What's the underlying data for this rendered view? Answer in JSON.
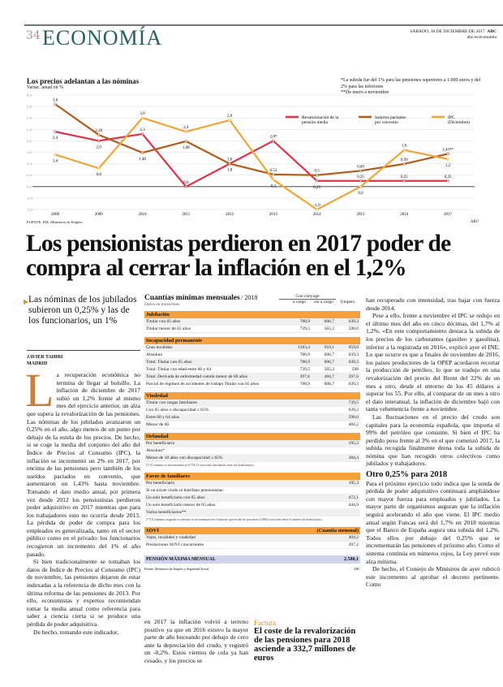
{
  "header": {
    "page_number": "34",
    "section": "ECONOMÍA",
    "date": "SÁBADO, 30 DE DICIEMBRE DE 2017",
    "brand": "ABC",
    "url": "abc.es/economia"
  },
  "chart_data": {
    "type": "line",
    "title": "Los precios adelantan a las nóminas",
    "subtitle": "Variac. anual en %",
    "categories": [
      "2008",
      "2009",
      "2010",
      "2011",
      "2012",
      "2013",
      "2014",
      "2015",
      "2016",
      "2017"
    ],
    "ylim": [
      -1.0,
      4.0
    ],
    "yticks": [
      "4,0",
      "3,5",
      "3,0",
      "2,5",
      "2,0",
      "1,5",
      "1,0",
      "0,5",
      "0,0",
      "-0,5",
      "-1,0"
    ],
    "legend_position": "top-right",
    "series": [
      {
        "name": "Revalorización de la pensión media",
        "color": "#e0344a",
        "values": [
          2.4,
          2.0,
          2.3,
          0.0,
          1.0,
          2.0,
          0.25,
          0.25,
          0.25,
          0.25
        ],
        "labels": [
          "2,4",
          "2,0",
          "2,3",
          "0,0",
          "1,0",
          "2,0*",
          "0,25",
          "0,25",
          "0,25",
          "0,25"
        ]
      },
      {
        "name": "Salarios pactados por convenio",
        "color": "#b35b1a",
        "values": [
          3.6,
          2.26,
          1.48,
          1.98,
          1.0,
          0.53,
          0.5,
          0.69,
          0.99,
          1.43
        ],
        "labels": [
          "3,6",
          "2,26",
          "1,48",
          "1,98",
          "1,0",
          "0,53",
          "0,5",
          "0,69",
          "0,99",
          "1,43**"
        ]
      },
      {
        "name": "IPC (Diciembre)",
        "color": "#f2a535",
        "values": [
          1.4,
          0.8,
          3.0,
          2.4,
          2.9,
          0.3,
          -1.0,
          0.0,
          1.6,
          1.2
        ],
        "labels": [
          "1,4",
          "0,8",
          "3,0",
          "2,4",
          "2,9",
          "0,3",
          "-1,0",
          "0,0",
          "1,6",
          "1,2"
        ]
      }
    ],
    "notes": [
      "*La subida fue del 1% para las pensiones superiores a 1.000 euros y del 2% para las inferiores",
      "**De enero a noviembre"
    ],
    "source": "FUENTE: INE, Ministerio de Empleo",
    "credit": "ABC"
  },
  "article": {
    "headline": "Los pensionistas perdieron en 2017 poder de compra al cerrar la inflación en el 1,2%",
    "lead": "Las nóminas de los jubilados subieron un 0,25% y las de los funcionarios, un 1%",
    "author": "JAVIER TAHIRI",
    "location": "MADRID",
    "drop": "L",
    "p1": "a recuperación económica no termina de llegar al bolsillo. La inflación de diciembre de 2017 subió un 1,2% frente al mismo mes del ejercicio anterior, un alza que supera la revalorización de las pensiones. Las nóminas de los jubilados avanzaron un 0,25% en el año, algo menos de un punto por debajo de la estela de los precios. De hecho, si se coge la media del conjunto del año del Índice de Precios al Consumo (IPC), la inflación se incrementó un 2% en 2017, por encima de las pensiones pero también de los sueldos pactados en convenio, que aumentaron un 1,43% hasta noviembre. Tomando el dato medio anual, por primera vez desde 2012 los pensionistas perdieron poder adquisitivo en 2017 mientras que para los trabajadores esto no ocurría desde 2013. La pérdida de poder de compra para los empleados es generalizada, tanto en el sector público como en el privado: los funcionarios recogieron un incremento del 1% el año pasado.",
    "p2": "Si bien tradicionalmente se tomaban los datos de Índice de Precios al Consumo (IPC) de noviembre, las pensiones dejaron de estar indexadas a la referencia de dicho mes con la última reforma de las pensiones de 2013. Por ello, economistas y expertos recomiendan tomar la media anual como referencia para saber a ciencia cierta si se produce una pérdida de poder adquisitiva.",
    "p3": "De hecho, tomando este indicador,",
    "p4": "en 2017 la inflación volvió a terreno positivo ya que en 2016 estuvo la mayor parte de año buceando por debajo de cero ante la depreciación del crudo, y registró un -0,2%. Estos vientos de cola ya han cesado, y los precios se",
    "p5": "han recuperado con intensidad, tras bajar con fuerza desde 2014.",
    "p6": "Pese a ello, frente a noviembre el IPC se redujo en el último mes del año en cinco décimas, del 1,7% al 1,2%. «En este comportamiento destaca la subida de los precios de los carburantes (gasóleo y gasolina), inferior a la registrada en 2016», explicó ayer el INE. Lo que ocurre es que a finales de noviembre de 2016, los países productores de la OPEP acordaron recortar la producción de petróleo, lo que se tradujo en una revalorización del precio del Brent del 22% de un mes a otro, desde el entorno de los 45 dólares a superar los 55. Por ello, al comparar de un mes a otro el dato interanual, la inflación de diciembre bajó con tanta vehemencia frente a noviembre.",
    "p7": "Las fluctuaciones en el precio del crudo son capitales para la economía española, que importa el 99% del petróleo que consume. Si bien el IPC ha perdido peso frente al 3% en el que comenzó 2017, la subida recogida finalmente drena toda la subida de nómina que han recogido otros colectivos como jubilados y trabajadores.",
    "subhead": "Otro 0,25% para 2018",
    "p8": "Para el próximo ejercicio todo indica que la senda de pérdida de poder adquisitivo continuará ampliándose con mayor fuerza para empleados y jubilados. La mayor parte de organismos auguran que la inflación seguirá acelerando el año que viene. El IPC medio anual según Funcas será del 1,7% en 2018 mientras que el Banco de España augura una subida del 1,2%. Todos ellos por debajo del 0,25% que se incrementarán las pensiones el próximo año. Como el sistema continúa en números rojos, la Ley prevé este alza mínima.",
    "p9": "De hecho, el Consejo de Ministros de ayer rubricó este incremento al aprobar el decreto pertinente. Como"
  },
  "factura": {
    "kicker": "Factura",
    "headline": "El coste de la revalorización de las pensiones para 2018 asciende a 332,7 millones de euros"
  },
  "table": {
    "title": "Cuantías mínimas mensuales",
    "year": "/ 2018",
    "subtitle": "Datos en euros/mes",
    "group_header": "Con cónyuge",
    "columns": [
      "a cargo",
      "sin a cargo",
      "Unipers."
    ],
    "sections": [
      {
        "name": "Jubilación",
        "rows": [
          [
            "Titular con 65 años",
            "788,9",
            "606,7",
            "639,3"
          ],
          [
            "Titular menor de 65 años",
            "739,5",
            "565,3",
            "598,0"
          ]
        ]
      },
      {
        "name": "Incapacidad permanente",
        "rows": [
          [
            "Gran invalidez",
            "1183,4",
            "910,1",
            "959,0"
          ],
          [
            "Absoluta",
            "788,9",
            "606,7",
            "639,3"
          ],
          [
            "Total: Titular con 65 años",
            "788,9",
            "606,7",
            "639,3"
          ],
          [
            "Total: Titular con edad entre 60 y 64",
            "739,5",
            "565,3",
            "598"
          ],
          [
            "Total: Derivada de enfermedad común menor de 60 años",
            "397,6",
            "404,7",
            "397,6"
          ],
          [
            "Parcial de régimen de accidentes de trabajo Titular con 65 años",
            "788,9",
            "606,7",
            "639,3"
          ]
        ]
      },
      {
        "name": "Viudedad",
        "rows": [
          [
            "Titular con cargas familiares",
            "",
            "",
            "739,5"
          ],
          [
            "Con 65 años o discapacidad ≥ 65%",
            "",
            "",
            "639,3"
          ],
          [
            "Entre 60 y 64 años",
            "",
            "",
            "598,0"
          ],
          [
            "Menor de 60",
            "",
            "",
            "484,2"
          ]
        ]
      },
      {
        "name": "Orfandad",
        "rows": [
          [
            "Por beneficiario",
            "",
            "",
            "195,3"
          ],
          [
            "Absoluta*",
            "",
            "",
            ""
          ],
          [
            "Menor de 18 años con discapacidad ≥ 65%",
            "",
            "",
            "384,4"
          ]
        ],
        "note": "(*) El mínimo se incrementará en 6.778,15 euros/año distribuido entre los beneficiarios"
      },
      {
        "name": "Favor de familiares",
        "rows": [
          [
            "Por beneficiario",
            "",
            "",
            "195,3"
          ],
          [
            "Si no existe viudo ni huérfano pensionistas:",
            "",
            "",
            ""
          ],
          [
            "Un solo beneficiario con 65 años",
            "",
            "",
            "472,1"
          ],
          [
            "Un solo beneficiario menor de 65 años",
            "",
            "",
            "444,9"
          ],
          [
            "Varios beneficiarios**",
            "",
            "",
            ""
          ]
        ],
        "note": "(**) El mínimo asignado a cada uno se incrementará en el importe que resulte de prorratear 4.098,6 euros/año entre el número de beneficiarios"
      },
      {
        "name": "SOVI",
        "extra": "(Cuantía mensual)",
        "rows": [
          [
            "Vejez, invalidez y viudedad",
            "",
            "",
            "409,2"
          ],
          [
            "Prestaciones SOVI concurrentes",
            "",
            "",
            "397,2"
          ]
        ]
      }
    ],
    "max_label": "PENSIÓN MÁXIMA MENSUAL",
    "max_value": "2.580,1",
    "source": "Fuente: Ministerio de Empleo y Seguridad Social",
    "credit": "ABC"
  }
}
